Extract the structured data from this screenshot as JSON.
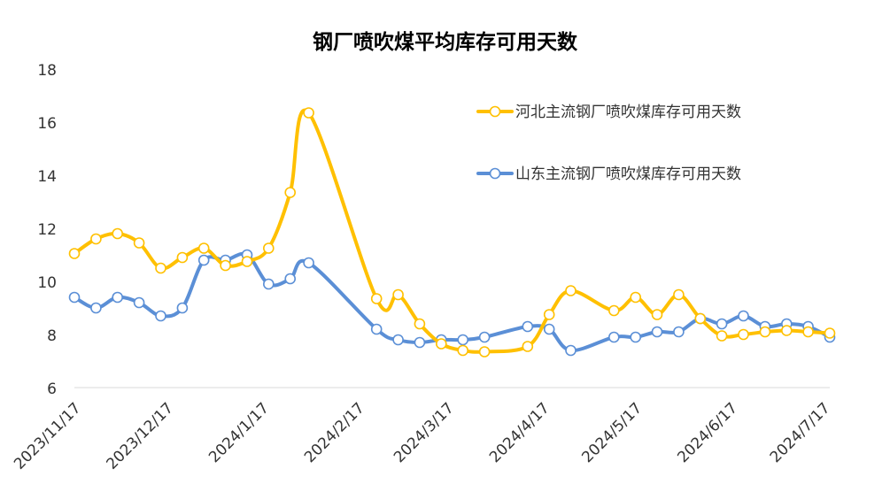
{
  "chart_data": {
    "type": "line",
    "title": "钢厂喷吹煤平均库存可用天数",
    "xlabel": "",
    "ylabel": "",
    "ylim": [
      6,
      18
    ],
    "yticks": [
      6,
      8,
      10,
      12,
      14,
      16,
      18
    ],
    "x_tick_labels": [
      "2023/11/17",
      "2023/12/17",
      "2024/1/17",
      "2024/2/17",
      "2024/3/17",
      "2024/4/17",
      "2024/5/17",
      "2024/6/17",
      "2024/7/17"
    ],
    "grid": false,
    "legend_position": "top-right",
    "colors": {
      "hebei": "#FFC000",
      "shandong": "#5B8FD6"
    },
    "series": [
      {
        "name": "河北主流钢厂喷吹煤库存可用天数",
        "color_key": "hebei",
        "points": [
          [
            "2023-11-17",
            11.05
          ],
          [
            "2023-11-24",
            11.6
          ],
          [
            "2023-12-01",
            11.8
          ],
          [
            "2023-12-08",
            11.45
          ],
          [
            "2023-12-15",
            10.5
          ],
          [
            "2023-12-22",
            10.9
          ],
          [
            "2023-12-29",
            11.25
          ],
          [
            "2024-01-05",
            10.6
          ],
          [
            "2024-01-12",
            10.75
          ],
          [
            "2024-01-19",
            11.25
          ],
          [
            "2024-01-26",
            13.35
          ],
          [
            "2024-02-01",
            16.35
          ],
          [
            "2024-02-23",
            9.35
          ],
          [
            "2024-03-01",
            9.5
          ],
          [
            "2024-03-08",
            8.4
          ],
          [
            "2024-03-15",
            7.65
          ],
          [
            "2024-03-22",
            7.4
          ],
          [
            "2024-03-29",
            7.35
          ],
          [
            "2024-04-12",
            7.55
          ],
          [
            "2024-04-19",
            8.75
          ],
          [
            "2024-04-26",
            9.65
          ],
          [
            "2024-05-10",
            8.9
          ],
          [
            "2024-05-17",
            9.4
          ],
          [
            "2024-05-24",
            8.75
          ],
          [
            "2024-05-31",
            9.5
          ],
          [
            "2024-06-07",
            8.6
          ],
          [
            "2024-06-14",
            7.95
          ],
          [
            "2024-06-21",
            8.0
          ],
          [
            "2024-06-28",
            8.1
          ],
          [
            "2024-07-05",
            8.15
          ],
          [
            "2024-07-12",
            8.1
          ],
          [
            "2024-07-19",
            8.05
          ]
        ]
      },
      {
        "name": "山东主流钢厂喷吹煤库存可用天数",
        "color_key": "shandong",
        "points": [
          [
            "2023-11-17",
            9.4
          ],
          [
            "2023-11-24",
            9.0
          ],
          [
            "2023-12-01",
            9.4
          ],
          [
            "2023-12-08",
            9.2
          ],
          [
            "2023-12-15",
            8.7
          ],
          [
            "2023-12-22",
            9.0
          ],
          [
            "2023-12-29",
            10.8
          ],
          [
            "2024-01-05",
            10.8
          ],
          [
            "2024-01-12",
            11.0
          ],
          [
            "2024-01-19",
            9.9
          ],
          [
            "2024-01-26",
            10.1
          ],
          [
            "2024-02-01",
            10.7
          ],
          [
            "2024-02-23",
            8.2
          ],
          [
            "2024-03-01",
            7.8
          ],
          [
            "2024-03-08",
            7.7
          ],
          [
            "2024-03-15",
            7.8
          ],
          [
            "2024-03-22",
            7.8
          ],
          [
            "2024-03-29",
            7.9
          ],
          [
            "2024-04-12",
            8.3
          ],
          [
            "2024-04-19",
            8.2
          ],
          [
            "2024-04-26",
            7.4
          ],
          [
            "2024-05-10",
            7.9
          ],
          [
            "2024-05-17",
            7.9
          ],
          [
            "2024-05-24",
            8.1
          ],
          [
            "2024-05-31",
            8.1
          ],
          [
            "2024-06-07",
            8.6
          ],
          [
            "2024-06-14",
            8.4
          ],
          [
            "2024-06-21",
            8.7
          ],
          [
            "2024-06-28",
            8.3
          ],
          [
            "2024-07-05",
            8.4
          ],
          [
            "2024-07-12",
            8.3
          ],
          [
            "2024-07-19",
            7.9
          ]
        ]
      }
    ]
  }
}
